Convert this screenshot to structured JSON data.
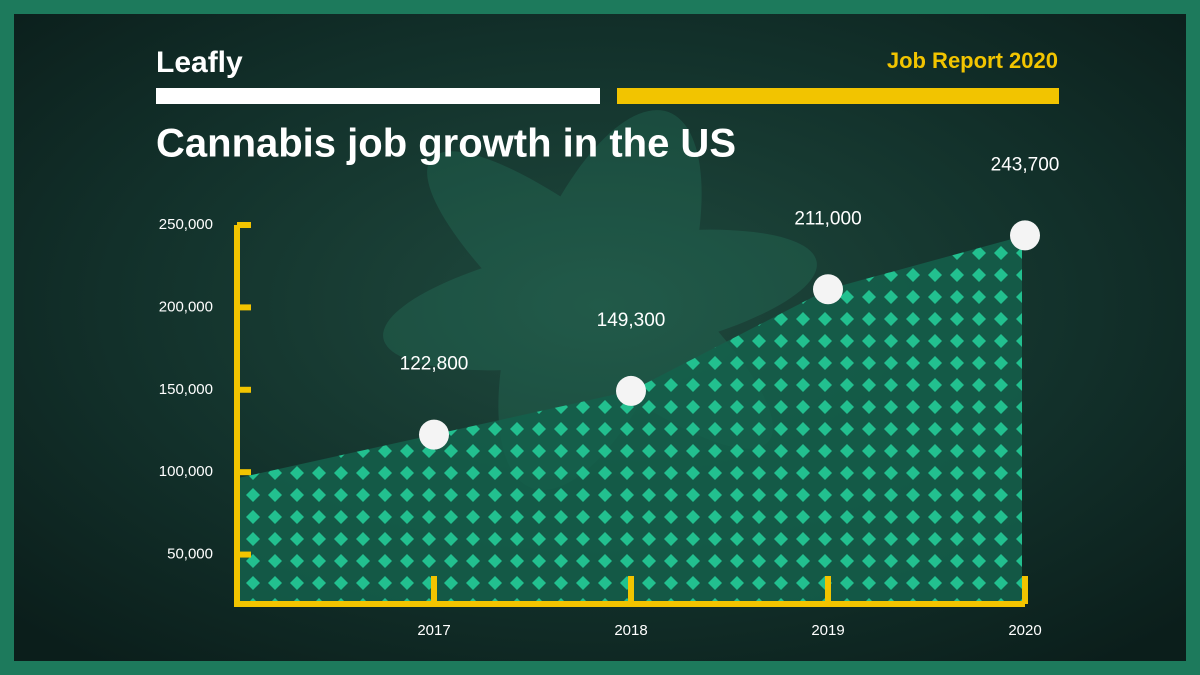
{
  "header": {
    "brand": "Leafly",
    "report": "Job Report 2020"
  },
  "chart_data": {
    "type": "area",
    "title": "Cannabis job growth in the US",
    "categories": [
      "2017",
      "2018",
      "2019",
      "2020"
    ],
    "values": [
      122800,
      149300,
      211000,
      243700
    ],
    "value_labels": [
      "122,800",
      "149,300",
      "211,000",
      "243,700"
    ],
    "color": "#1fc492",
    "ylim": [
      20000,
      250000
    ],
    "yticks": [
      {
        "value": 50000,
        "label": "50,000"
      },
      {
        "value": 100000,
        "label": "100,000"
      },
      {
        "value": 150000,
        "label": "150,000"
      },
      {
        "value": 200000,
        "label": "200,000"
      },
      {
        "value": 250000,
        "label": "250,000"
      }
    ]
  }
}
